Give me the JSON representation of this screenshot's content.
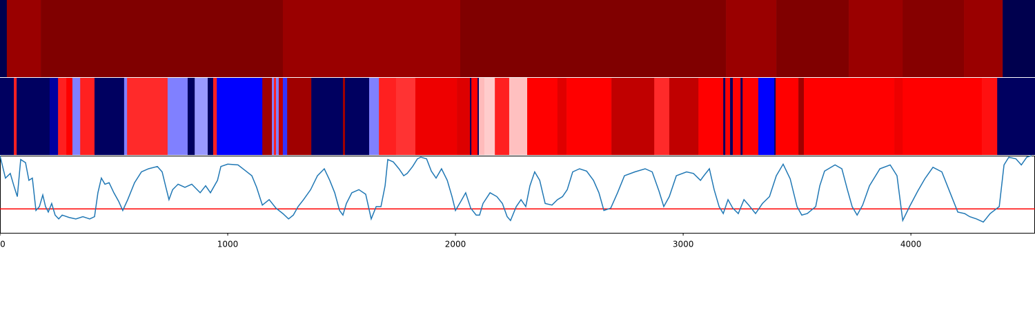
{
  "chart_data": [
    {
      "type": "band",
      "xlim": [
        0,
        4545
      ],
      "x": [
        0,
        30,
        179,
        1242,
        2021,
        3188,
        3409,
        3727,
        3964,
        4233,
        4403,
        4545
      ],
      "colors": [
        "#00004e",
        "#9a0000",
        "#800000",
        "#9a0000",
        "#800000",
        "#9a0000",
        "#800000",
        "#9a0000",
        "#860000",
        "#9a0000",
        "#00004e"
      ]
    },
    {
      "type": "band",
      "xlim": [
        0,
        4545
      ],
      "x": [
        0,
        61,
        73,
        218,
        255,
        291,
        318,
        352,
        415,
        545,
        558,
        736,
        824,
        855,
        912,
        936,
        952,
        1152,
        1194,
        1203,
        1212,
        1224,
        1242,
        1261,
        1367,
        1506,
        1515,
        1621,
        1664,
        1739,
        1824,
        2006,
        2064,
        2070,
        2097,
        2103,
        2127,
        2173,
        2236,
        2315,
        2448,
        2488,
        2685,
        2873,
        2939,
        3067,
        3176,
        3185,
        3206,
        3218,
        3252,
        3261,
        3330,
        3400,
        3406,
        3506,
        3530,
        3927,
        3964,
        4312,
        4379,
        4545
      ],
      "colors": [
        "#000060",
        "#ff2020",
        "#000060",
        "#0000a0",
        "#ff2020",
        "#ff0000",
        "#8080ff",
        "#ff2020",
        "#000060",
        "#8080ff",
        "#ff2a2a",
        "#8080ff",
        "#000060",
        "#9999ff",
        "#000060",
        "#ff2020",
        "#0000ff",
        "#a00000",
        "#8080ff",
        "#ff2020",
        "#8080ff",
        "#c00000",
        "#3333ff",
        "#a00000",
        "#000060",
        "#a00000",
        "#000060",
        "#8080ff",
        "#ff2020",
        "#ff3333",
        "#ee0000",
        "#dd0000",
        "#000060",
        "#ff0000",
        "#000060",
        "#ffbbbb",
        "#ffcccc",
        "#ff2020",
        "#ffc0c0",
        "#ff0000",
        "#e00000",
        "#ff0000",
        "#c00000",
        "#ff2a2a",
        "#c00000",
        "#ff0000",
        "#000060",
        "#ff0000",
        "#000060",
        "#ff0000",
        "#000060",
        "#ff0000",
        "#0000ff",
        "#000060",
        "#ff0000",
        "#a00000",
        "#ff0000",
        "#ee0000",
        "#ff0000",
        "#ff1010",
        "#000060"
      ]
    },
    {
      "type": "line",
      "xlim": [
        0,
        4545
      ],
      "ylim": [
        0,
        1
      ],
      "xticks": [
        0,
        1000,
        2000,
        3000,
        4000
      ],
      "color": "#1f77b4",
      "threshold": 0.31,
      "threshold_color": "#ff0000",
      "x": [
        0,
        24,
        45,
        61,
        76,
        91,
        112,
        127,
        142,
        158,
        173,
        188,
        200,
        212,
        227,
        242,
        258,
        273,
        303,
        333,
        364,
        394,
        415,
        430,
        445,
        461,
        479,
        500,
        521,
        539,
        561,
        591,
        621,
        652,
        691,
        712,
        727,
        742,
        758,
        782,
        812,
        842,
        879,
        903,
        924,
        955,
        970,
        1000,
        1045,
        1076,
        1106,
        1127,
        1152,
        1182,
        1212,
        1242,
        1267,
        1288,
        1309,
        1333,
        1364,
        1394,
        1424,
        1448,
        1470,
        1491,
        1506,
        1521,
        1545,
        1576,
        1606,
        1630,
        1652,
        1673,
        1691,
        1703,
        1727,
        1752,
        1773,
        1788,
        1812,
        1833,
        1848,
        1873,
        1894,
        1915,
        1939,
        1964,
        1985,
        2000,
        2024,
        2045,
        2067,
        2091,
        2106,
        2121,
        2152,
        2182,
        2206,
        2227,
        2242,
        2267,
        2288,
        2309,
        2327,
        2348,
        2370,
        2394,
        2424,
        2448,
        2470,
        2491,
        2515,
        2545,
        2576,
        2606,
        2630,
        2652,
        2682,
        2712,
        2742,
        2788,
        2833,
        2864,
        2894,
        2915,
        2939,
        2970,
        3015,
        3045,
        3076,
        3091,
        3115,
        3136,
        3158,
        3176,
        3197,
        3218,
        3242,
        3267,
        3288,
        3318,
        3348,
        3379,
        3409,
        3439,
        3470,
        3500,
        3521,
        3545,
        3582,
        3600,
        3621,
        3667,
        3697,
        3721,
        3742,
        3764,
        3788,
        3818,
        3864,
        3909,
        3939,
        3964,
        3994,
        4030,
        4061,
        4097,
        4136,
        4167,
        4206,
        4236,
        4258,
        4288,
        4318,
        4348,
        4388,
        4409,
        4430,
        4461,
        4485,
        4509,
        4530
      ],
      "values": [
        1,
        0.71,
        0.77,
        0.61,
        0.47,
        0.95,
        0.91,
        0.68,
        0.71,
        0.29,
        0.34,
        0.49,
        0.34,
        0.27,
        0.38,
        0.23,
        0.18,
        0.23,
        0.2,
        0.18,
        0.21,
        0.18,
        0.21,
        0.52,
        0.71,
        0.63,
        0.65,
        0.52,
        0.41,
        0.29,
        0.43,
        0.65,
        0.79,
        0.83,
        0.86,
        0.79,
        0.61,
        0.43,
        0.56,
        0.63,
        0.59,
        0.63,
        0.52,
        0.61,
        0.52,
        0.68,
        0.86,
        0.89,
        0.88,
        0.81,
        0.74,
        0.59,
        0.36,
        0.43,
        0.32,
        0.25,
        0.18,
        0.23,
        0.34,
        0.43,
        0.56,
        0.74,
        0.83,
        0.68,
        0.52,
        0.29,
        0.23,
        0.38,
        0.52,
        0.56,
        0.5,
        0.18,
        0.34,
        0.34,
        0.61,
        0.95,
        0.92,
        0.83,
        0.74,
        0.77,
        0.86,
        0.96,
        0.98,
        0.96,
        0.8,
        0.71,
        0.83,
        0.68,
        0.47,
        0.29,
        0.41,
        0.52,
        0.32,
        0.23,
        0.23,
        0.38,
        0.52,
        0.47,
        0.38,
        0.21,
        0.16,
        0.34,
        0.43,
        0.34,
        0.61,
        0.79,
        0.68,
        0.38,
        0.36,
        0.43,
        0.47,
        0.56,
        0.79,
        0.83,
        0.8,
        0.68,
        0.52,
        0.29,
        0.32,
        0.52,
        0.74,
        0.79,
        0.83,
        0.79,
        0.54,
        0.34,
        0.47,
        0.74,
        0.79,
        0.77,
        0.68,
        0.74,
        0.83,
        0.56,
        0.34,
        0.25,
        0.43,
        0.32,
        0.25,
        0.43,
        0.36,
        0.25,
        0.38,
        0.47,
        0.74,
        0.89,
        0.7,
        0.34,
        0.23,
        0.25,
        0.34,
        0.61,
        0.8,
        0.88,
        0.83,
        0.56,
        0.34,
        0.23,
        0.36,
        0.61,
        0.83,
        0.88,
        0.74,
        0.16,
        0.34,
        0.54,
        0.7,
        0.85,
        0.79,
        0.56,
        0.27,
        0.25,
        0.21,
        0.18,
        0.14,
        0.25,
        0.34,
        0.88,
        0.98,
        0.96,
        0.88,
        0.98,
        1
      ]
    }
  ]
}
